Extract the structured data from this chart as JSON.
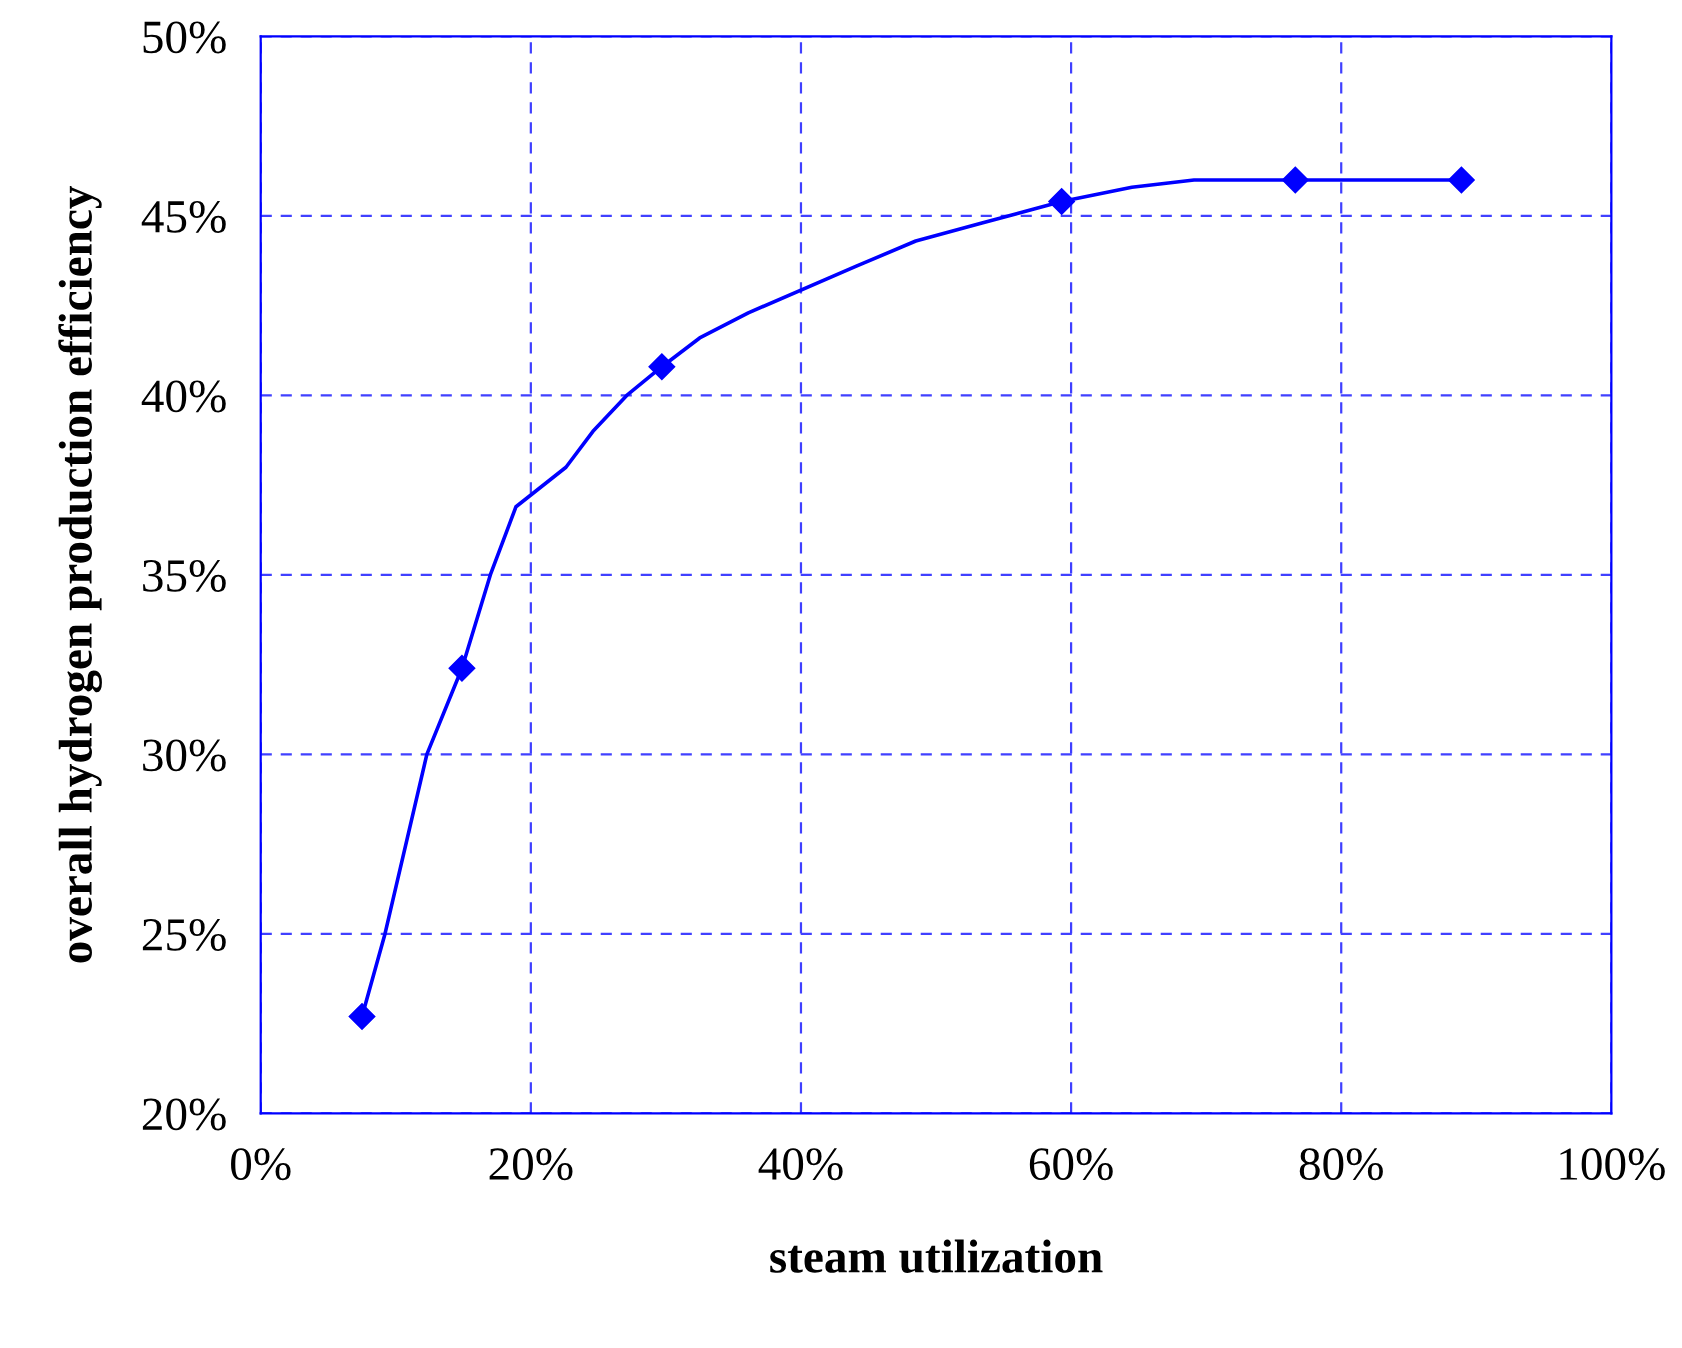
{
  "chart_data": {
    "type": "line",
    "xlabel": "steam utilization",
    "ylabel": "overall hydrogen production efficiency",
    "series": [
      {
        "color": "#0000ff",
        "marker": "none",
        "x": [
          7.5,
          9.2,
          12.3,
          14.9,
          17.0,
          18.9,
          22.6,
          24.6,
          27.1,
          29.7,
          32.5,
          36.1,
          44.1,
          48.5,
          53.4,
          59.3,
          64.5,
          69.1,
          76.6,
          88.9
        ],
        "values": [
          22.7,
          25.0,
          30.0,
          32.4,
          35.0,
          36.9,
          38.0,
          39.0,
          40.0,
          40.8,
          41.6,
          42.3,
          43.6,
          44.3,
          44.8,
          45.4,
          45.8,
          46.0,
          46.0,
          46.0
        ]
      },
      {
        "type": "scatter",
        "color": "#0000ff",
        "x": [
          7.5,
          14.9,
          29.7,
          59.3,
          76.6,
          88.9
        ],
        "values": [
          22.7,
          32.4,
          40.8,
          45.4,
          46.0,
          46.0
        ]
      }
    ],
    "xlim": [
      0,
      100
    ],
    "ylim": [
      20,
      50
    ],
    "xticks": [
      {
        "value": 0,
        "label": "0%"
      },
      {
        "value": 20,
        "label": "20%"
      },
      {
        "value": 40,
        "label": "40%"
      },
      {
        "value": 60,
        "label": "60%"
      },
      {
        "value": 80,
        "label": "80%"
      },
      {
        "value": 100,
        "label": "100%"
      }
    ],
    "yticks": [
      {
        "value": 20,
        "label": "20%"
      },
      {
        "value": 25,
        "label": "25%"
      },
      {
        "value": 30,
        "label": "30%"
      },
      {
        "value": 35,
        "label": "35%"
      },
      {
        "value": 40,
        "label": "40%"
      },
      {
        "value": 45,
        "label": "45%"
      },
      {
        "value": 50,
        "label": "50%"
      }
    ],
    "grid": true,
    "marker": "diamond",
    "line_style": "solid",
    "legend": false
  }
}
